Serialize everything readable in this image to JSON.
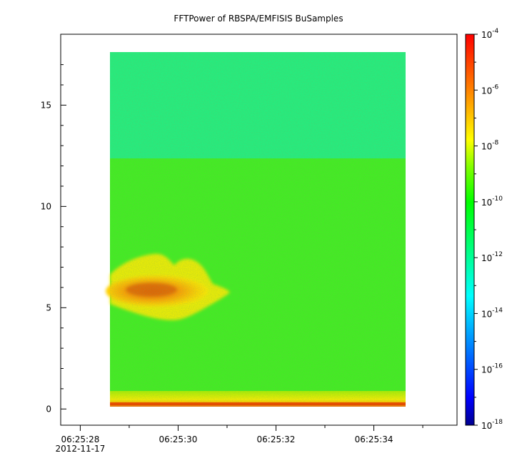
{
  "chart_data": {
    "type": "heatmap",
    "title": "FFTPower of RBSPA/EMFISIS  BuSamples",
    "xlabel": "",
    "ylabel": "",
    "x_ticks": [
      {
        "label": "06:25:28",
        "sublabel": "2012-11-17",
        "t": 0
      },
      {
        "label": "06:25:30",
        "sublabel": "",
        "t": 2
      },
      {
        "label": "06:25:32",
        "sublabel": "",
        "t": 4
      },
      {
        "label": "06:25:34",
        "sublabel": "",
        "t": 6
      }
    ],
    "x_range_seconds_after_062528": [
      -0.4,
      7.7
    ],
    "data_time_range_seconds_after_062528": [
      1.0,
      6.95
    ],
    "y_ticks": [
      0,
      5,
      10,
      15
    ],
    "ylim": [
      -0.8,
      18.5
    ],
    "data_y_range": [
      0,
      17.5
    ],
    "colorbar": {
      "scale": "log",
      "range": [
        1e-18,
        0.0001
      ],
      "ticks": [
        {
          "base": "10",
          "exp": "-4",
          "value": 0.0001
        },
        {
          "base": "10",
          "exp": "-6",
          "value": 1e-06
        },
        {
          "base": "10",
          "exp": "-8",
          "value": 1e-08
        },
        {
          "base": "10",
          "exp": "-10",
          "value": 1e-10
        },
        {
          "base": "10",
          "exp": "-12",
          "value": 1e-12
        },
        {
          "base": "10",
          "exp": "-14",
          "value": 1e-14
        },
        {
          "base": "10",
          "exp": "-16",
          "value": 1e-16
        },
        {
          "base": "10",
          "exp": "-18",
          "value": 1e-18
        }
      ],
      "colors": [
        "#00008f",
        "#0000ff",
        "#0080ff",
        "#00ffff",
        "#00ff80",
        "#00ff00",
        "#80ff00",
        "#ffff00",
        "#ff8000",
        "#ff0000"
      ]
    },
    "regions": [
      {
        "y_range": [
          12.3,
          17.5
        ],
        "level": 1e-12
      },
      {
        "y_range": [
          0.9,
          12.3
        ],
        "level": 1e-10
      },
      {
        "y_range": [
          0.3,
          0.9
        ],
        "level": 1e-08
      },
      {
        "y_range": [
          0.0,
          0.3
        ],
        "level": 1e-06
      },
      {
        "feature": "emission",
        "t_range": [
          1.0,
          3.4
        ],
        "y_range": [
          4.7,
          7.3
        ],
        "peak_level": 1e-07
      }
    ],
    "grid": false,
    "legend": "colorbar-right"
  }
}
